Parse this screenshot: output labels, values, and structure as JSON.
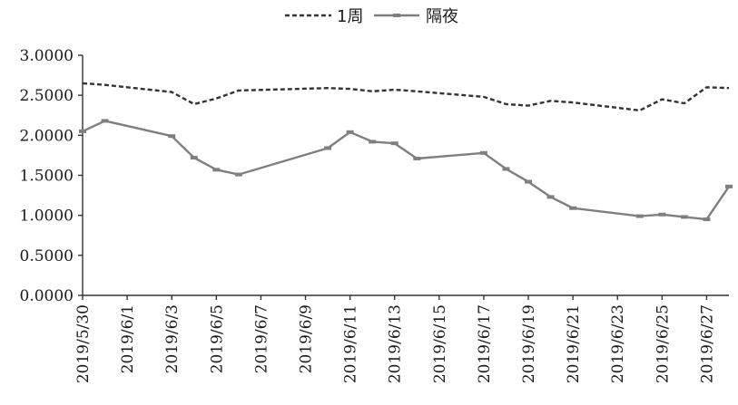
{
  "chart_data": {
    "type": "line",
    "title": "",
    "xlabel": "",
    "ylabel": "",
    "ylim": [
      0,
      3
    ],
    "y_ticks": [
      "0.0000",
      "0.5000",
      "1.0000",
      "1.5000",
      "2.0000",
      "2.5000",
      "3.0000"
    ],
    "x_ticks": [
      "2019/5/30",
      "2019/6/1",
      "2019/6/3",
      "2019/6/5",
      "2019/6/7",
      "2019/6/9",
      "2019/6/11",
      "2019/6/13",
      "2019/6/15",
      "2019/6/17",
      "2019/6/19",
      "2019/6/21",
      "2019/6/23",
      "2019/6/25",
      "2019/6/27"
    ],
    "x_range": [
      "2019/5/30",
      "2019/6/28"
    ],
    "legend_position": "top-center",
    "grid": false,
    "series": [
      {
        "name": "1周",
        "style": "dashed",
        "color": "#333333",
        "x": [
          "2019/5/30",
          "2019/5/31",
          "2019/6/3",
          "2019/6/4",
          "2019/6/5",
          "2019/6/6",
          "2019/6/10",
          "2019/6/11",
          "2019/6/12",
          "2019/6/13",
          "2019/6/14",
          "2019/6/17",
          "2019/6/18",
          "2019/6/19",
          "2019/6/20",
          "2019/6/21",
          "2019/6/24",
          "2019/6/25",
          "2019/6/26",
          "2019/6/27",
          "2019/6/28"
        ],
        "values": [
          2.65,
          2.63,
          2.54,
          2.39,
          2.46,
          2.56,
          2.59,
          2.58,
          2.55,
          2.57,
          2.55,
          2.48,
          2.39,
          2.37,
          2.43,
          2.41,
          2.31,
          2.45,
          2.4,
          2.6,
          2.59
        ]
      },
      {
        "name": "隔夜",
        "style": "solid-marker",
        "color": "#7f7f7f",
        "x": [
          "2019/5/30",
          "2019/5/31",
          "2019/6/3",
          "2019/6/4",
          "2019/6/5",
          "2019/6/6",
          "2019/6/10",
          "2019/6/11",
          "2019/6/12",
          "2019/6/13",
          "2019/6/14",
          "2019/6/17",
          "2019/6/18",
          "2019/6/19",
          "2019/6/20",
          "2019/6/21",
          "2019/6/24",
          "2019/6/25",
          "2019/6/26",
          "2019/6/27",
          "2019/6/28"
        ],
        "values": [
          2.05,
          2.18,
          1.99,
          1.72,
          1.57,
          1.51,
          1.84,
          2.04,
          1.92,
          1.9,
          1.71,
          1.78,
          1.58,
          1.42,
          1.23,
          1.09,
          0.99,
          1.01,
          0.98,
          0.95,
          1.36
        ]
      }
    ]
  }
}
